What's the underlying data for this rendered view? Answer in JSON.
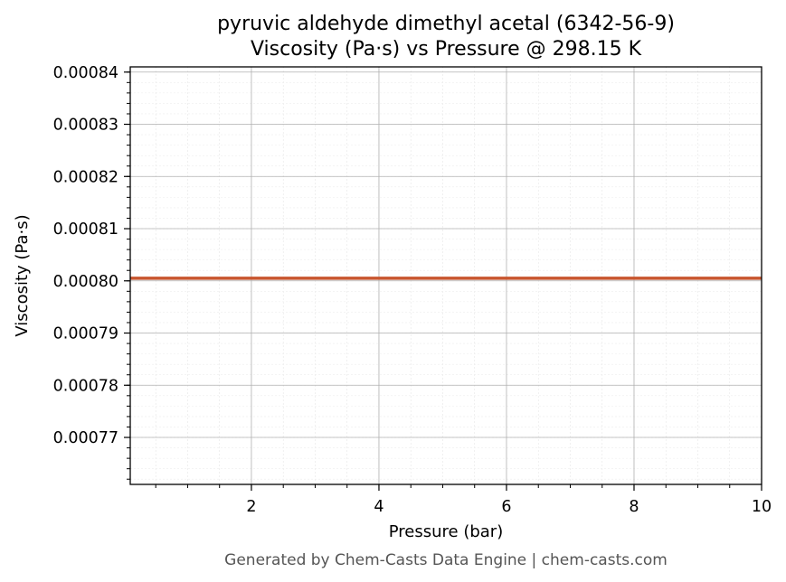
{
  "chart_data": {
    "type": "line",
    "title": "pyruvic aldehyde dimethyl acetal (6342-56-9)",
    "subtitle": "Viscosity (Pa·s) vs Pressure @ 298.15 K",
    "xlabel": "Pressure (bar)",
    "ylabel": "Viscosity (Pa·s)",
    "xlim": [
      0.1,
      10
    ],
    "ylim": [
      0.000761,
      0.000841
    ],
    "x_ticks": [
      2,
      4,
      6,
      8,
      10
    ],
    "x_tick_labels": [
      "2",
      "4",
      "6",
      "8",
      "10"
    ],
    "y_ticks": [
      0.00077,
      0.00078,
      0.00079,
      0.0008,
      0.00081,
      0.00082,
      0.00083,
      0.00084
    ],
    "y_tick_labels": [
      "0.00077",
      "0.00078",
      "0.00079",
      "0.00080",
      "0.00081",
      "0.00082",
      "0.00083",
      "0.00084"
    ],
    "grid": true,
    "minor_grid": true,
    "series": [
      {
        "color": "#c8552e",
        "x": [
          0.1,
          1,
          2,
          3,
          4,
          5,
          6,
          7,
          8,
          9,
          10
        ],
        "y": [
          0.0008005,
          0.0008005,
          0.0008005,
          0.0008005,
          0.0008005,
          0.0008005,
          0.0008005,
          0.0008005,
          0.0008005,
          0.0008005,
          0.0008005
        ]
      }
    ]
  },
  "footer": "Generated by Chem-Casts Data Engine | chem-casts.com"
}
